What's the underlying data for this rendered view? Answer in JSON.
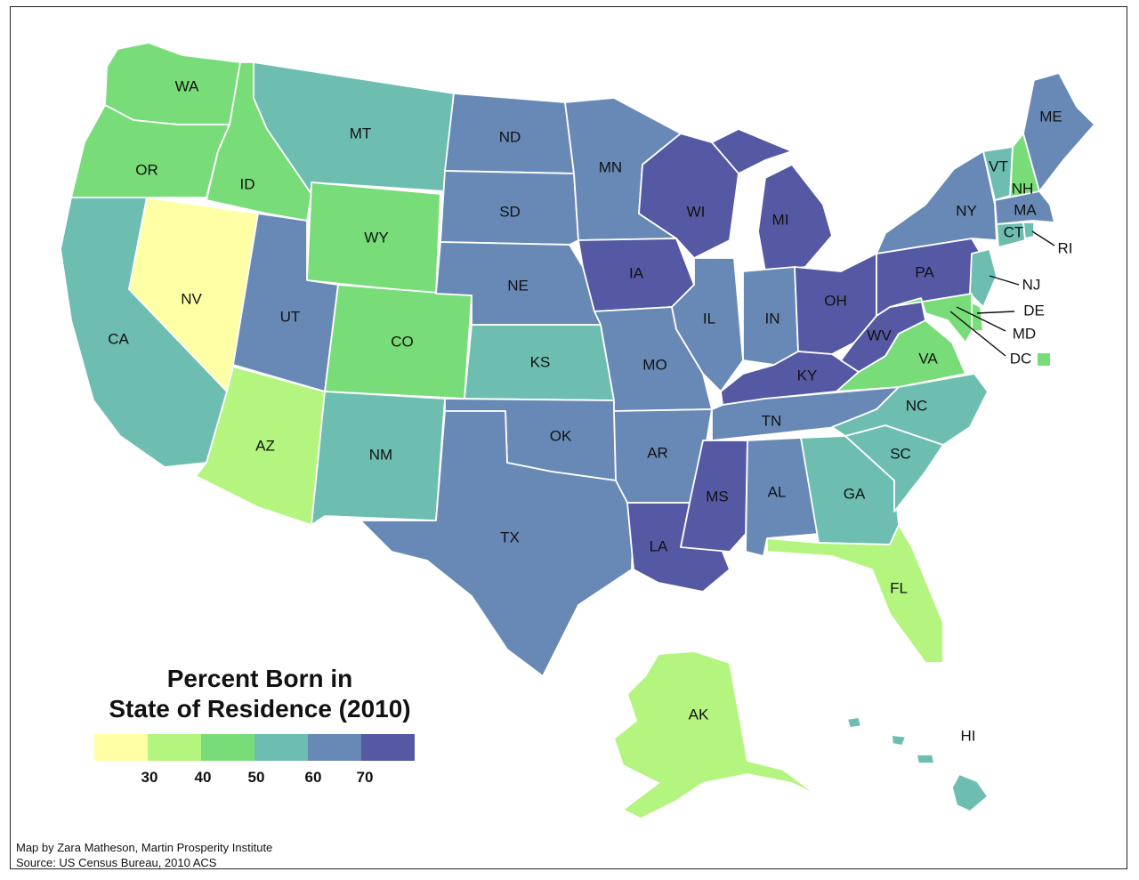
{
  "legend": {
    "title_line1": "Percent Born in",
    "title_line2": "State of Residence (2010)",
    "ticks": [
      "30",
      "40",
      "50",
      "60",
      "70"
    ],
    "colors": [
      "#ffffa6",
      "#b3f57f",
      "#78dc78",
      "#6dbdb0",
      "#6889b6",
      "#5558a2"
    ]
  },
  "credits": {
    "line1": "Map by Zara Matheson, Martin Prosperity Institute",
    "line2": "Source: US Census Bureau, 2010 ACS"
  },
  "states": {
    "WA": {
      "label": "WA",
      "color": "#78dc78"
    },
    "OR": {
      "label": "OR",
      "color": "#78dc78"
    },
    "CA": {
      "label": "CA",
      "color": "#6dbdb0"
    },
    "NV": {
      "label": "NV",
      "color": "#ffffa6"
    },
    "ID": {
      "label": "ID",
      "color": "#78dc78"
    },
    "MT": {
      "label": "MT",
      "color": "#6dbdb0"
    },
    "WY": {
      "label": "WY",
      "color": "#78dc78"
    },
    "UT": {
      "label": "UT",
      "color": "#6889b6"
    },
    "CO": {
      "label": "CO",
      "color": "#78dc78"
    },
    "AZ": {
      "label": "AZ",
      "color": "#b3f57f"
    },
    "NM": {
      "label": "NM",
      "color": "#6dbdb0"
    },
    "ND": {
      "label": "ND",
      "color": "#6889b6"
    },
    "SD": {
      "label": "SD",
      "color": "#6889b6"
    },
    "NE": {
      "label": "NE",
      "color": "#6889b6"
    },
    "KS": {
      "label": "KS",
      "color": "#6dbdb0"
    },
    "OK": {
      "label": "OK",
      "color": "#6889b6"
    },
    "TX": {
      "label": "TX",
      "color": "#6889b6"
    },
    "MN": {
      "label": "MN",
      "color": "#6889b6"
    },
    "IA": {
      "label": "IA",
      "color": "#5558a2"
    },
    "MO": {
      "label": "MO",
      "color": "#6889b6"
    },
    "AR": {
      "label": "AR",
      "color": "#6889b6"
    },
    "LA": {
      "label": "LA",
      "color": "#5558a2"
    },
    "WI": {
      "label": "WI",
      "color": "#5558a2"
    },
    "IL": {
      "label": "IL",
      "color": "#6889b6"
    },
    "MI": {
      "label": "MI",
      "color": "#5558a2"
    },
    "IN": {
      "label": "IN",
      "color": "#6889b6"
    },
    "OH": {
      "label": "OH",
      "color": "#5558a2"
    },
    "KY": {
      "label": "KY",
      "color": "#5558a2"
    },
    "TN": {
      "label": "TN",
      "color": "#6889b6"
    },
    "MS": {
      "label": "MS",
      "color": "#5558a2"
    },
    "AL": {
      "label": "AL",
      "color": "#6889b6"
    },
    "GA": {
      "label": "GA",
      "color": "#6dbdb0"
    },
    "FL": {
      "label": "FL",
      "color": "#b3f57f"
    },
    "SC": {
      "label": "SC",
      "color": "#6dbdb0"
    },
    "NC": {
      "label": "NC",
      "color": "#6dbdb0"
    },
    "VA": {
      "label": "VA",
      "color": "#78dc78"
    },
    "WV": {
      "label": "WV",
      "color": "#5558a2"
    },
    "PA": {
      "label": "PA",
      "color": "#5558a2"
    },
    "NY": {
      "label": "NY",
      "color": "#6889b6"
    },
    "NJ": {
      "label": "NJ",
      "color": "#6dbdb0"
    },
    "DE": {
      "label": "DE",
      "color": "#78dc78"
    },
    "MD": {
      "label": "MD",
      "color": "#78dc78"
    },
    "DC": {
      "label": "DC",
      "color": "#78dc78"
    },
    "VT": {
      "label": "VT",
      "color": "#6dbdb0"
    },
    "NH": {
      "label": "NH",
      "color": "#78dc78"
    },
    "ME": {
      "label": "ME",
      "color": "#6889b6"
    },
    "MA": {
      "label": "MA",
      "color": "#6889b6"
    },
    "CT": {
      "label": "CT",
      "color": "#6dbdb0"
    },
    "RI": {
      "label": "RI",
      "color": "#6dbdb0"
    },
    "AK": {
      "label": "AK",
      "color": "#b3f57f"
    },
    "HI": {
      "label": "HI",
      "color": "#6dbdb0"
    }
  }
}
